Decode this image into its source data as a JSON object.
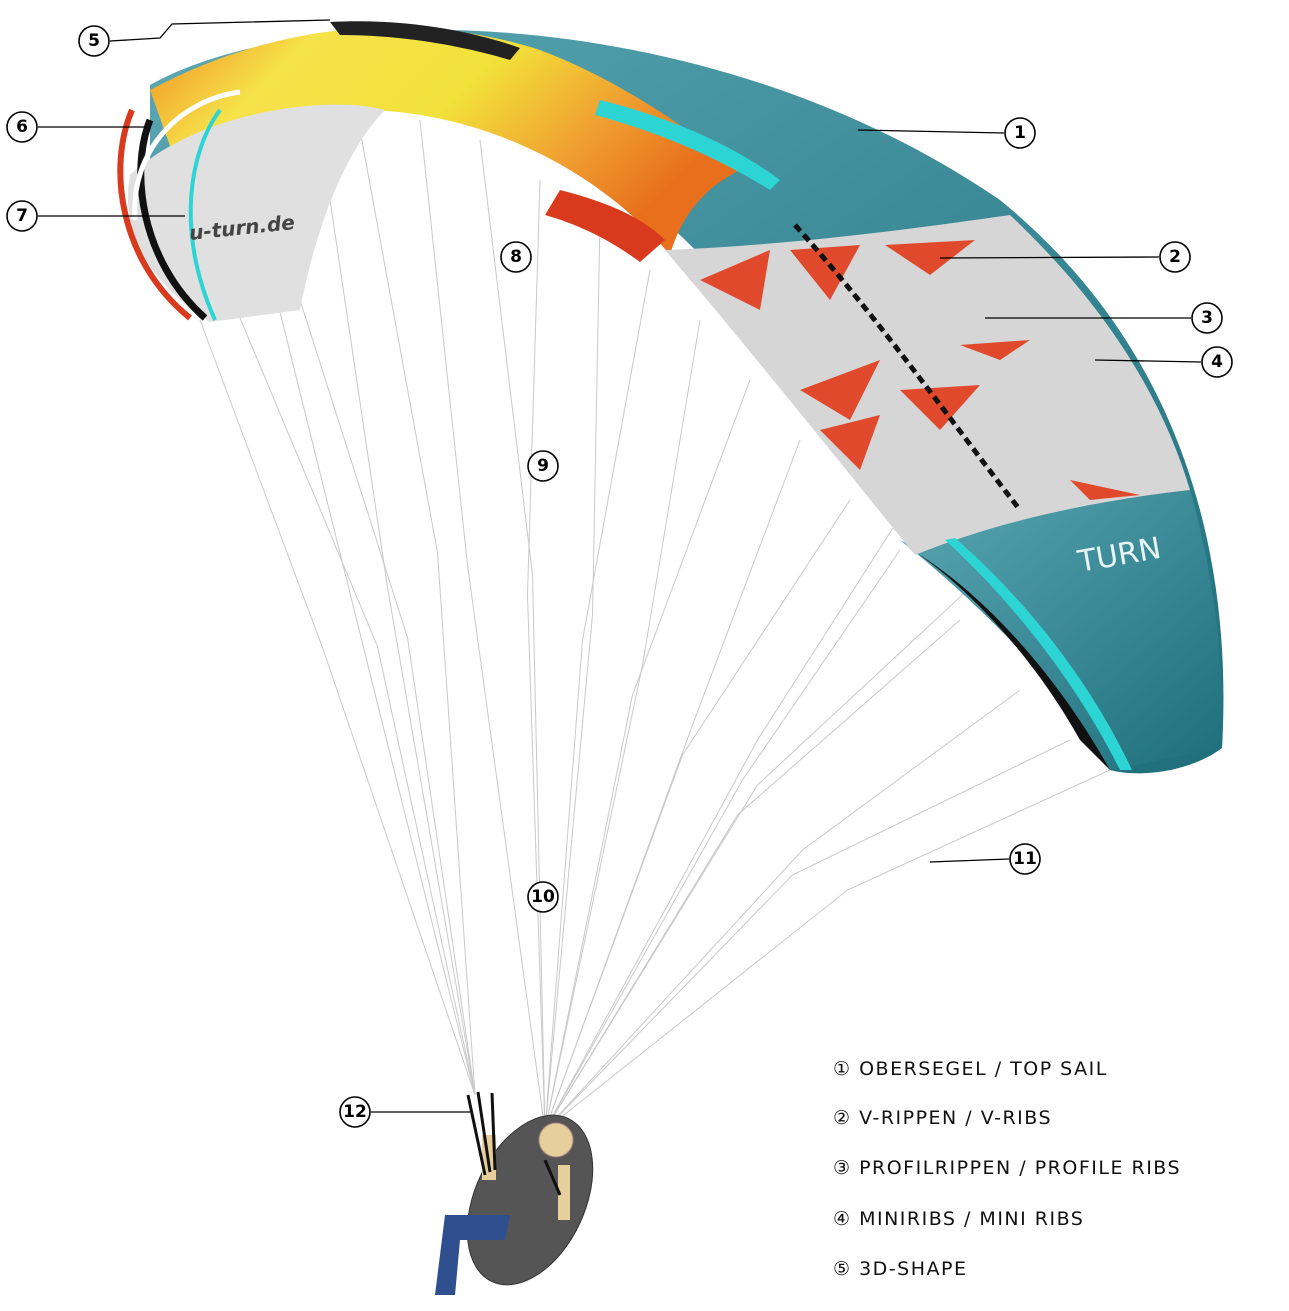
{
  "callouts": [
    "1",
    "2",
    "3",
    "4",
    "5",
    "6",
    "7",
    "8",
    "9",
    "10",
    "11",
    "12"
  ],
  "legend": [
    "① OBERSEGEL / TOP SAIL",
    "② V-RIPPEN / V-RIBS",
    "③ PROFILRIPPEN / PROFILE RIBS",
    "④ MINIRIBS / MINI RIBS",
    "⑤ 3D-SHAPE"
  ],
  "wing_text": "u-turn.de",
  "logo_text": "TURN"
}
